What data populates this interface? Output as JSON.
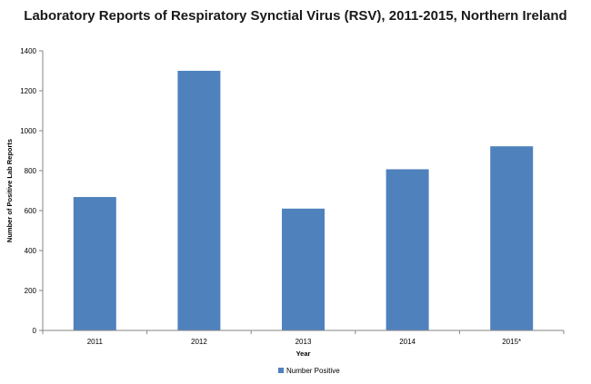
{
  "chart_data": {
    "type": "bar",
    "title": "Laboratory Reports of Respiratory Synctial Virus (RSV), 2011-2015, Northern Ireland",
    "xlabel": "Year",
    "ylabel": "Number of Positive Lab Reports",
    "categories": [
      "2011",
      "2012",
      "2013",
      "2014",
      "2015*"
    ],
    "series": [
      {
        "name": "Number Positive",
        "values": [
          668,
          1300,
          610,
          807,
          922
        ],
        "color": "#4f81bd"
      }
    ],
    "ylim": [
      0,
      1400
    ],
    "yticks": [
      0,
      200,
      400,
      600,
      800,
      1000,
      1200,
      1400
    ],
    "grid": false,
    "legend": "bottom"
  }
}
